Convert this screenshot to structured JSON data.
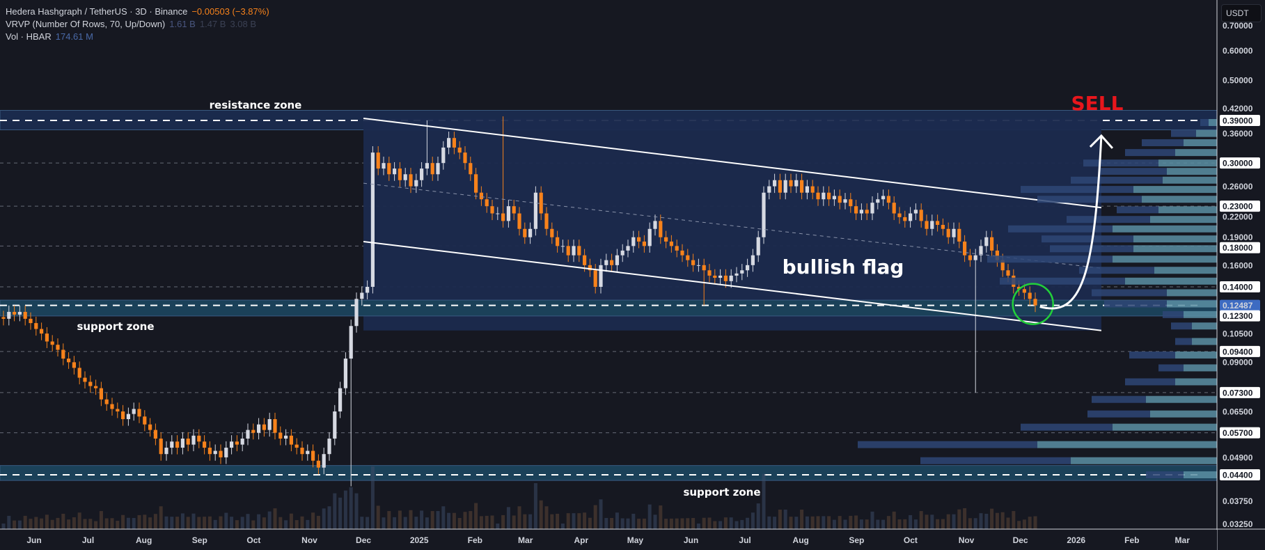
{
  "legend": {
    "symbol_line": "Hedera Hashgraph / TetherUS · 3D · Binance",
    "change": "−0.00503 (−3.87%)",
    "vrvp_label": "VRVP (Number Of Rows, 70, Up/Down)",
    "vrvp_up": "1.61 B",
    "vrvp_down": "1.47 B",
    "vrvp_total": "3.08 B",
    "vol_label": "Vol · HBAR",
    "vol_value": "174.61 M"
  },
  "currency_button": "USDT",
  "colors": {
    "background": "#161821",
    "bull": "#d6d9e2",
    "bear": "#f7821b",
    "flag_fill": "#1b2a4e",
    "zone_fill": "#1b4159",
    "resistance_fill": "#1a2a4c",
    "sell": "#e8161c",
    "circle": "#22d03a",
    "profile_up": "#5a8fa3",
    "profile_down": "#2e4676"
  },
  "chart_data": {
    "type": "candlestick",
    "title": "Hedera Hashgraph / TetherUS · 3D · Binance",
    "scale": "log",
    "ylim": [
      0.0305,
      0.76
    ],
    "x_range": [
      "2024-05-13",
      "2026-03-31"
    ],
    "x_tick_labels": [
      {
        "label": "Jun",
        "date": "2024-06-01"
      },
      {
        "label": "Jul",
        "date": "2024-07-01"
      },
      {
        "label": "Aug",
        "date": "2024-08-01"
      },
      {
        "label": "Sep",
        "date": "2024-09-01"
      },
      {
        "label": "Oct",
        "date": "2024-10-01"
      },
      {
        "label": "Nov",
        "date": "2024-11-01"
      },
      {
        "label": "Dec",
        "date": "2024-12-01"
      },
      {
        "label": "2025",
        "date": "2025-01-01"
      },
      {
        "label": "Feb",
        "date": "2025-02-01"
      },
      {
        "label": "Mar",
        "date": "2025-03-01"
      },
      {
        "label": "Apr",
        "date": "2025-04-01"
      },
      {
        "label": "May",
        "date": "2025-05-01"
      },
      {
        "label": "Jun",
        "date": "2025-06-01"
      },
      {
        "label": "Jul",
        "date": "2025-07-01"
      },
      {
        "label": "Aug",
        "date": "2025-08-01"
      },
      {
        "label": "Sep",
        "date": "2025-09-01"
      },
      {
        "label": "Oct",
        "date": "2025-10-01"
      },
      {
        "label": "Nov",
        "date": "2025-11-01"
      },
      {
        "label": "Dec",
        "date": "2025-12-01"
      },
      {
        "label": "2026",
        "date": "2026-01-01"
      },
      {
        "label": "Feb",
        "date": "2026-02-01"
      },
      {
        "label": "Mar",
        "date": "2026-03-01"
      }
    ],
    "y_tick_labels": [
      {
        "label": "0.70000",
        "value": 0.7
      },
      {
        "label": "0.60000",
        "value": 0.6
      },
      {
        "label": "0.50000",
        "value": 0.5
      },
      {
        "label": "0.42000",
        "value": 0.42
      },
      {
        "label": "0.39000",
        "value": 0.39,
        "highlight": true
      },
      {
        "label": "0.36000",
        "value": 0.36
      },
      {
        "label": "0.30000",
        "value": 0.3,
        "highlight": true
      },
      {
        "label": "0.26000",
        "value": 0.26
      },
      {
        "label": "0.23000",
        "value": 0.23,
        "highlight": true
      },
      {
        "label": "0.22000",
        "value": 0.22
      },
      {
        "label": "0.19000",
        "value": 0.19
      },
      {
        "label": "0.18000",
        "value": 0.18,
        "highlight": true
      },
      {
        "label": "0.16000",
        "value": 0.16
      },
      {
        "label": "0.14000",
        "value": 0.14,
        "highlight": true
      },
      {
        "label": "0.12487",
        "value": 0.12487,
        "current": true
      },
      {
        "label": "0.12300",
        "value": 0.123,
        "highlight": true
      },
      {
        "label": "0.10500",
        "value": 0.105
      },
      {
        "label": "0.09400",
        "value": 0.094,
        "highlight": true
      },
      {
        "label": "0.09000",
        "value": 0.09
      },
      {
        "label": "0.07300",
        "value": 0.073,
        "highlight": true
      },
      {
        "label": "0.06500",
        "value": 0.065
      },
      {
        "label": "0.05700",
        "value": 0.057,
        "highlight": true
      },
      {
        "label": "0.04900",
        "value": 0.049
      },
      {
        "label": "0.04400",
        "value": 0.044,
        "highlight": true
      },
      {
        "label": "0.03750",
        "value": 0.0375
      },
      {
        "label": "0.03250",
        "value": 0.0325
      }
    ],
    "horizontal_levels": [
      0.3,
      0.23,
      0.18,
      0.14,
      0.094,
      0.073,
      0.057
    ],
    "candle_interval_days": 3,
    "first_candle_date": "2024-05-13",
    "closes": [
      0.115,
      0.12,
      0.118,
      0.12,
      0.115,
      0.112,
      0.108,
      0.105,
      0.1,
      0.098,
      0.095,
      0.09,
      0.088,
      0.085,
      0.08,
      0.078,
      0.076,
      0.075,
      0.07,
      0.068,
      0.066,
      0.065,
      0.062,
      0.064,
      0.066,
      0.063,
      0.06,
      0.058,
      0.055,
      0.05,
      0.052,
      0.054,
      0.052,
      0.055,
      0.053,
      0.056,
      0.054,
      0.052,
      0.05,
      0.051,
      0.049,
      0.052,
      0.054,
      0.053,
      0.055,
      0.058,
      0.057,
      0.06,
      0.058,
      0.062,
      0.057,
      0.055,
      0.056,
      0.053,
      0.052,
      0.05,
      0.051,
      0.048,
      0.046,
      0.05,
      0.055,
      0.065,
      0.075,
      0.09,
      0.11,
      0.13,
      0.135,
      0.14,
      0.32,
      0.29,
      0.3,
      0.28,
      0.29,
      0.27,
      0.28,
      0.26,
      0.27,
      0.29,
      0.3,
      0.28,
      0.3,
      0.33,
      0.35,
      0.33,
      0.32,
      0.3,
      0.28,
      0.25,
      0.24,
      0.23,
      0.22,
      0.22,
      0.21,
      0.23,
      0.22,
      0.2,
      0.19,
      0.2,
      0.25,
      0.22,
      0.2,
      0.19,
      0.18,
      0.18,
      0.17,
      0.18,
      0.17,
      0.16,
      0.155,
      0.14,
      0.16,
      0.165,
      0.16,
      0.17,
      0.175,
      0.18,
      0.19,
      0.185,
      0.18,
      0.2,
      0.21,
      0.19,
      0.185,
      0.18,
      0.175,
      0.17,
      0.165,
      0.16,
      0.16,
      0.155,
      0.15,
      0.148,
      0.15,
      0.145,
      0.15,
      0.152,
      0.155,
      0.16,
      0.17,
      0.19,
      0.25,
      0.26,
      0.27,
      0.25,
      0.27,
      0.26,
      0.27,
      0.25,
      0.26,
      0.25,
      0.24,
      0.25,
      0.24,
      0.245,
      0.235,
      0.24,
      0.23,
      0.22,
      0.225,
      0.22,
      0.235,
      0.24,
      0.245,
      0.235,
      0.22,
      0.215,
      0.21,
      0.22,
      0.225,
      0.21,
      0.2,
      0.21,
      0.205,
      0.2,
      0.19,
      0.2,
      0.185,
      0.17,
      0.165,
      0.17,
      0.18,
      0.19,
      0.175,
      0.165,
      0.155,
      0.15,
      0.14,
      0.138,
      0.135,
      0.13,
      0.12487
    ],
    "notable_wicks": [
      {
        "index": 64,
        "low": 0.041
      },
      {
        "index": 78,
        "high": 0.39
      },
      {
        "index": 92,
        "high": 0.4
      },
      {
        "index": 129,
        "low": 0.125
      },
      {
        "index": 179,
        "low": 0.073
      }
    ],
    "volume_profile": [
      {
        "price": 0.385,
        "up": 0.02,
        "down": 0.02
      },
      {
        "price": 0.36,
        "up": 0.05,
        "down": 0.06
      },
      {
        "price": 0.34,
        "up": 0.08,
        "down": 0.1
      },
      {
        "price": 0.32,
        "up": 0.1,
        "down": 0.12
      },
      {
        "price": 0.3,
        "up": 0.14,
        "down": 0.18
      },
      {
        "price": 0.285,
        "up": 0.12,
        "down": 0.16
      },
      {
        "price": 0.27,
        "up": 0.13,
        "down": 0.22
      },
      {
        "price": 0.255,
        "up": 0.2,
        "down": 0.27
      },
      {
        "price": 0.24,
        "up": 0.18,
        "down": 0.25
      },
      {
        "price": 0.225,
        "up": 0.14,
        "down": 0.1
      },
      {
        "price": 0.212,
        "up": 0.16,
        "down": 0.2
      },
      {
        "price": 0.2,
        "up": 0.25,
        "down": 0.25
      },
      {
        "price": 0.188,
        "up": 0.2,
        "down": 0.22
      },
      {
        "price": 0.177,
        "up": 0.2,
        "down": 0.2
      },
      {
        "price": 0.166,
        "up": 0.25,
        "down": 0.3
      },
      {
        "price": 0.155,
        "up": 0.15,
        "down": 0.18
      },
      {
        "price": 0.145,
        "up": 0.22,
        "down": 0.3
      },
      {
        "price": 0.135,
        "up": 0.12,
        "down": 0.18
      },
      {
        "price": 0.126,
        "up": 0.12,
        "down": 0.15
      },
      {
        "price": 0.118,
        "up": 0.08,
        "down": 0.05
      },
      {
        "price": 0.11,
        "up": 0.06,
        "down": 0.05
      },
      {
        "price": 0.1,
        "up": 0.06,
        "down": 0.04
      },
      {
        "price": 0.092,
        "up": 0.1,
        "down": 0.11
      },
      {
        "price": 0.085,
        "up": 0.08,
        "down": 0.06
      },
      {
        "price": 0.078,
        "up": 0.1,
        "down": 0.12
      },
      {
        "price": 0.07,
        "up": 0.17,
        "down": 0.13
      },
      {
        "price": 0.064,
        "up": 0.16,
        "down": 0.15
      },
      {
        "price": 0.059,
        "up": 0.25,
        "down": 0.22
      },
      {
        "price": 0.053,
        "up": 0.43,
        "down": 0.43
      },
      {
        "price": 0.048,
        "up": 0.35,
        "down": 0.36
      },
      {
        "price": 0.044,
        "up": 0.08,
        "down": 0.09
      }
    ]
  },
  "annotations": {
    "resistance_label": "resistance zone",
    "support_label_1": "support zone",
    "support_label_2": "support zone",
    "flag_label": "bullish flag",
    "signal_label": "SELL",
    "resistance_zone": {
      "low": 0.368,
      "high": 0.415,
      "level": 0.39
    },
    "support_zone_1": {
      "low": 0.117,
      "high": 0.129,
      "level": 0.12487
    },
    "support_zone_2": {
      "low": 0.0425,
      "high": 0.0466,
      "level": 0.044
    },
    "flag_channel": {
      "start_date": "2024-12-01",
      "end_date": "2026-01-15",
      "upper": [
        0.395,
        0.228
      ],
      "lower": [
        0.185,
        0.107
      ],
      "mid": [
        0.265,
        0.157
      ]
    },
    "circle_marker": {
      "date": "2025-12-08",
      "price": 0.126
    },
    "arrow_target": {
      "date": "2026-01-15",
      "price": 0.37
    }
  }
}
